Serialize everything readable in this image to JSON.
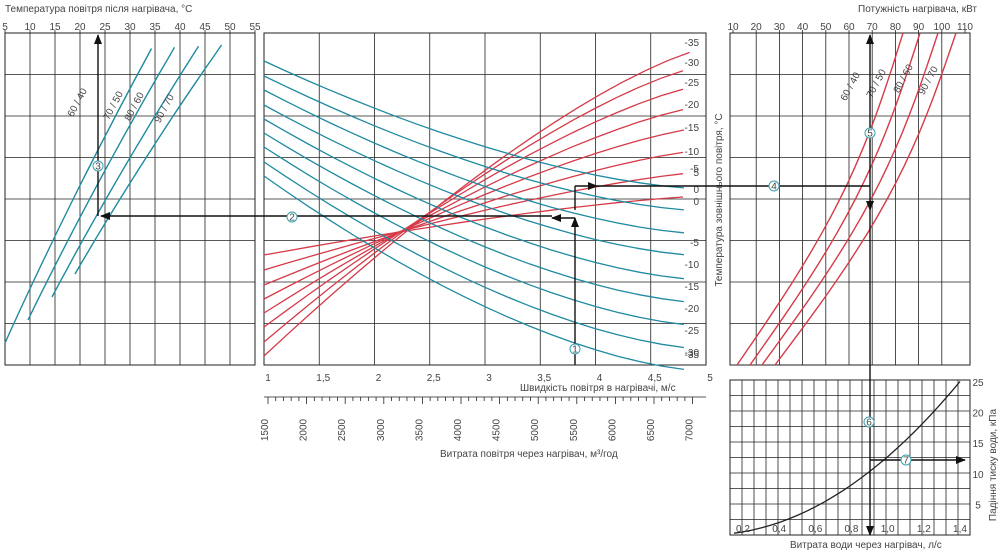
{
  "chart_data": [
    {
      "type": "line",
      "title": "Температура повітря після нагрівача, °C",
      "x_ticks": [
        5,
        10,
        15,
        20,
        25,
        30,
        35,
        40,
        45,
        50,
        55
      ],
      "xlim": [
        5,
        55
      ],
      "series": [
        {
          "name": "60 / 40",
          "color": "#1f8aa0"
        },
        {
          "name": "70 / 50",
          "color": "#1f8aa0"
        },
        {
          "name": "80 / 60",
          "color": "#1f8aa0"
        },
        {
          "name": "90 / 70",
          "color": "#1f8aa0"
        }
      ],
      "marker": {
        "label": "3",
        "x": 25
      }
    },
    {
      "type": "line",
      "xlabel": "Швидкість повітря в нагрівачі, м/с",
      "x2label": "Витрата повітря через нагрівач, м³/год",
      "ylabel": "Температура зовнішнього повітря, °C",
      "x_ticks": [
        "1",
        "1,5",
        "2",
        "2,5",
        "3",
        "3,5",
        "4",
        "4,5",
        "5"
      ],
      "xlim": [
        1,
        5
      ],
      "x2_ticks": [
        "1500",
        "2000",
        "2500",
        "3000",
        "3500",
        "4000",
        "4500",
        "5000",
        "5500",
        "6000",
        "6500",
        "7000"
      ],
      "red_ticks": [
        "-35",
        "-30",
        "-25",
        "-20",
        "-15",
        "-10",
        "-5",
        "0"
      ],
      "blue_ticks": [
        "5",
        "0",
        "-5",
        "-10",
        "-15",
        "-20",
        "-25",
        "-30",
        "-35"
      ],
      "series_colors": {
        "rising": "#d63a48",
        "falling": "#1f8aa0"
      },
      "markers": [
        {
          "label": "1",
          "x": 3.85
        },
        {
          "label": "2"
        }
      ]
    },
    {
      "type": "line",
      "title": "Потужність нагрівача, кВт",
      "x_ticks": [
        10,
        20,
        30,
        40,
        50,
        60,
        70,
        80,
        90,
        100,
        110
      ],
      "xlim": [
        10,
        110
      ],
      "series": [
        {
          "name": "60 / 40",
          "color": "#d63a48"
        },
        {
          "name": "70 / 50",
          "color": "#d63a48"
        },
        {
          "name": "80 / 60",
          "color": "#d63a48"
        },
        {
          "name": "90 / 70",
          "color": "#d63a48"
        }
      ],
      "markers": [
        {
          "label": "4"
        },
        {
          "label": "5",
          "x": 72
        }
      ]
    },
    {
      "type": "line",
      "xlabel": "Витрата води через нагрівач, л/с",
      "ylabel": "Падіння тиску води, кПа",
      "x_ticks": [
        "0,2",
        "0,4",
        "0,6",
        "0,8",
        "1,0",
        "1,2",
        "1,4"
      ],
      "xlim": [
        0.2,
        1.4
      ],
      "y_ticks": [
        5,
        10,
        15,
        20,
        25
      ],
      "ylim": [
        0,
        25
      ],
      "series": [
        {
          "x": [
            0.2,
            0.4,
            0.6,
            0.8,
            0.9,
            1.0,
            1.2,
            1.4
          ],
          "y": [
            0.5,
            2,
            4.6,
            8.2,
            10.4,
            12.8,
            18.4,
            25
          ]
        }
      ],
      "markers": [
        {
          "label": "6",
          "x": 0.9
        },
        {
          "label": "7",
          "y": 10.4
        }
      ]
    }
  ]
}
